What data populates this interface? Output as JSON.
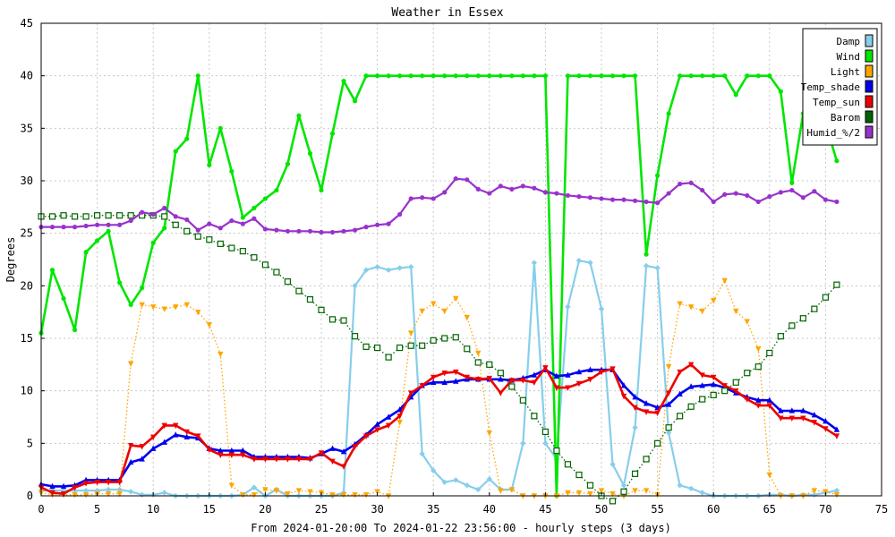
{
  "chart_data": {
    "type": "line",
    "title": "Weather in Essex",
    "xlabel": "From 2024-01-20:00 To 2024-01-22 23:56:00 - hourly steps (3 days)",
    "ylabel": "Degrees",
    "xlim": [
      0,
      75
    ],
    "ylim": [
      0,
      45
    ],
    "x_ticks": [
      0,
      5,
      10,
      15,
      20,
      25,
      30,
      35,
      40,
      45,
      50,
      55,
      60,
      65,
      70,
      75
    ],
    "y_ticks": [
      0,
      5,
      10,
      15,
      20,
      25,
      30,
      35,
      40,
      45
    ],
    "grid": true,
    "legend_position": "top-right",
    "x": [
      0,
      1,
      2,
      3,
      4,
      5,
      6,
      7,
      8,
      9,
      10,
      11,
      12,
      13,
      14,
      15,
      16,
      17,
      18,
      19,
      20,
      21,
      22,
      23,
      24,
      25,
      26,
      27,
      28,
      29,
      30,
      31,
      32,
      33,
      34,
      35,
      36,
      37,
      38,
      39,
      40,
      41,
      42,
      43,
      44,
      45,
      46,
      47,
      48,
      49,
      50,
      51,
      52,
      53,
      54,
      55,
      56,
      57,
      58,
      59,
      60,
      61,
      62,
      63,
      64,
      65,
      66,
      67,
      68,
      69,
      70,
      71
    ],
    "series": [
      {
        "name": "Damp",
        "color": "#87ceeb",
        "marker": "diamond",
        "line_style": "solid",
        "values": [
          0.5,
          0.5,
          0.5,
          0.5,
          0.5,
          0.5,
          0.6,
          0.6,
          0.4,
          0.1,
          0.1,
          0.3,
          0,
          0,
          0,
          0,
          0,
          0,
          0.1,
          0.8,
          0,
          0.6,
          0,
          0,
          0,
          0,
          0,
          0.3,
          20,
          21.5,
          21.8,
          21.5,
          21.7,
          21.8,
          4,
          2.4,
          1.3,
          1.5,
          1,
          0.6,
          1.6,
          0.6,
          0.6,
          5,
          22.2,
          5,
          3.5,
          18,
          22.4,
          22.2,
          17.8,
          3,
          1,
          6.5,
          21.9,
          21.7,
          6,
          1,
          0.7,
          0.3,
          0,
          0,
          0,
          0,
          0,
          0.1,
          0.1,
          0,
          0.1,
          0.1,
          0.3,
          0.5
        ]
      },
      {
        "name": "Wind",
        "color": "#00e600",
        "marker": "circle",
        "line_style": "solid",
        "values": [
          15.5,
          21.5,
          18.8,
          15.8,
          23.2,
          24.3,
          25.2,
          20.3,
          18.2,
          19.8,
          24.1,
          25.5,
          32.8,
          34,
          40,
          31.5,
          35,
          30.9,
          26.5,
          27.4,
          28.3,
          29.1,
          31.6,
          36.2,
          32.6,
          29.1,
          34.5,
          39.5,
          37.6,
          40,
          40,
          40,
          40,
          40,
          40,
          40,
          40,
          40,
          40,
          40,
          40,
          40,
          40,
          40,
          40,
          40,
          0,
          40,
          40,
          40,
          40,
          40,
          40,
          40,
          23,
          30.5,
          36.4,
          40,
          40,
          40,
          40,
          40,
          38.2,
          40,
          40,
          40,
          38.5,
          29.8,
          36.4,
          36,
          35.5,
          31.9
        ]
      },
      {
        "name": "Light",
        "color": "#ffa500",
        "marker": "triangle-down",
        "line_style": "dotted",
        "values": [
          0.3,
          0.1,
          0.1,
          0.1,
          0.1,
          0.2,
          0.2,
          0.2,
          12.6,
          18.2,
          18,
          17.8,
          18,
          18.2,
          17.5,
          16.3,
          13.5,
          1,
          0.1,
          0.1,
          0.6,
          0.5,
          0.2,
          0.5,
          0.4,
          0.3,
          0.1,
          0.1,
          0.1,
          0.1,
          0.4,
          0,
          7,
          15.5,
          17.6,
          18.3,
          17.6,
          18.8,
          17,
          13.6,
          6,
          0.5,
          0.6,
          0,
          0,
          0,
          0,
          0.3,
          0.3,
          0.2,
          0.5,
          0.2,
          0,
          0.5,
          0.5,
          0.1,
          12.3,
          18.3,
          18,
          17.6,
          18.6,
          20.5,
          17.6,
          16.6,
          14,
          2,
          0,
          0,
          0,
          0.5,
          0.4,
          0.1
        ]
      },
      {
        "name": "Temp_shade",
        "color": "#0000ee",
        "marker": "triangle-up",
        "line_style": "solid",
        "values": [
          1.1,
          0.9,
          0.9,
          1.0,
          1.5,
          1.5,
          1.5,
          1.5,
          3.2,
          3.5,
          4.5,
          5.1,
          5.8,
          5.6,
          5.5,
          4.5,
          4.3,
          4.3,
          4.3,
          3.7,
          3.7,
          3.7,
          3.7,
          3.7,
          3.6,
          4.0,
          4.5,
          4.2,
          4.9,
          5.8,
          6.8,
          7.5,
          8.2,
          9.4,
          10.5,
          10.8,
          10.8,
          10.9,
          11.1,
          11.1,
          11.1,
          11.1,
          11.0,
          11.2,
          11.5,
          12.0,
          11.4,
          11.5,
          11.8,
          12.0,
          12.0,
          12.0,
          10.5,
          9.4,
          8.8,
          8.4,
          8.7,
          9.7,
          10.4,
          10.5,
          10.6,
          10.3,
          9.8,
          9.4,
          9.1,
          9.1,
          8.1,
          8.1,
          8.1,
          7.7,
          7.1,
          6.3
        ]
      },
      {
        "name": "Temp_sun",
        "color": "#ee0000",
        "marker": "triangle-down",
        "line_style": "solid",
        "values": [
          0.8,
          0.3,
          0.2,
          0.8,
          1.2,
          1.3,
          1.3,
          1.3,
          4.8,
          4.7,
          5.6,
          6.7,
          6.7,
          6.1,
          5.7,
          4.4,
          3.9,
          3.9,
          3.9,
          3.5,
          3.5,
          3.5,
          3.5,
          3.5,
          3.5,
          4.1,
          3.3,
          2.8,
          4.7,
          5.7,
          6.3,
          6.7,
          7.6,
          9.8,
          10.5,
          11.3,
          11.7,
          11.8,
          11.3,
          11.1,
          11.2,
          9.8,
          11.0,
          11.0,
          10.8,
          12.2,
          10.3,
          10.3,
          10.7,
          11.1,
          11.8,
          12.1,
          9.5,
          8.4,
          8.0,
          7.9,
          9.8,
          11.8,
          12.5,
          11.5,
          11.3,
          10.5,
          10.0,
          9.2,
          8.6,
          8.6,
          7.4,
          7.4,
          7.4,
          7.0,
          6.4,
          5.7
        ]
      },
      {
        "name": "Barom",
        "color": "#006400",
        "marker": "square",
        "line_style": "dotted",
        "values": [
          26.6,
          26.6,
          26.7,
          26.6,
          26.6,
          26.7,
          26.7,
          26.7,
          26.7,
          26.7,
          26.7,
          26.6,
          25.8,
          25.2,
          24.7,
          24.4,
          24.0,
          23.6,
          23.3,
          22.7,
          22.0,
          21.3,
          20.4,
          19.5,
          18.7,
          17.7,
          16.8,
          16.7,
          15.2,
          14.2,
          14.1,
          13.2,
          14.1,
          14.3,
          14.3,
          14.8,
          15.0,
          15.1,
          14.0,
          12.7,
          12.5,
          11.7,
          10.4,
          9.1,
          7.6,
          6.1,
          4.3,
          3.0,
          2.0,
          1.0,
          0,
          -0.5,
          0.4,
          2.1,
          3.5,
          5.0,
          6.5,
          7.6,
          8.5,
          9.2,
          9.6,
          10.0,
          10.8,
          11.7,
          12.3,
          13.6,
          15.2,
          16.2,
          16.9,
          17.8,
          18.9,
          20.1
        ]
      },
      {
        "name": "Humid_%/2",
        "color": "#9932cc",
        "marker": "circle",
        "line_style": "solid",
        "values": [
          25.6,
          25.6,
          25.6,
          25.6,
          25.7,
          25.8,
          25.8,
          25.8,
          26.2,
          27.0,
          26.8,
          27.4,
          26.6,
          26.3,
          25.3,
          25.9,
          25.5,
          26.2,
          25.9,
          26.4,
          25.4,
          25.3,
          25.2,
          25.2,
          25.2,
          25.1,
          25.1,
          25.2,
          25.3,
          25.6,
          25.8,
          25.9,
          26.8,
          28.3,
          28.4,
          28.3,
          28.9,
          30.2,
          30.1,
          29.2,
          28.8,
          29.5,
          29.2,
          29.5,
          29.3,
          28.9,
          28.8,
          28.6,
          28.5,
          28.4,
          28.3,
          28.2,
          28.2,
          28.1,
          28.0,
          27.9,
          28.8,
          29.7,
          29.8,
          29.1,
          28.0,
          28.7,
          28.8,
          28.6,
          28.0,
          28.5,
          28.9,
          29.1,
          28.4,
          29.0,
          28.2,
          28.0
        ]
      }
    ]
  }
}
